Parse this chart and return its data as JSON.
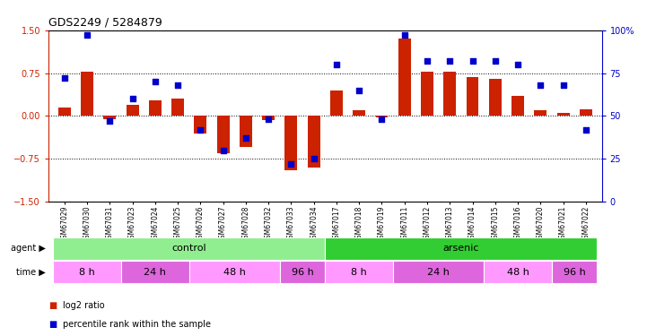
{
  "title": "GDS2249 / 5284879",
  "samples": [
    "GSM67029",
    "GSM67030",
    "GSM67031",
    "GSM67023",
    "GSM67024",
    "GSM67025",
    "GSM67026",
    "GSM67027",
    "GSM67028",
    "GSM67032",
    "GSM67033",
    "GSM67034",
    "GSM67017",
    "GSM67018",
    "GSM67019",
    "GSM67011",
    "GSM67012",
    "GSM67013",
    "GSM67014",
    "GSM67015",
    "GSM67016",
    "GSM67020",
    "GSM67021",
    "GSM67022"
  ],
  "log2ratio": [
    0.15,
    0.78,
    -0.05,
    0.2,
    0.27,
    0.3,
    -0.3,
    -0.65,
    -0.55,
    -0.08,
    -0.95,
    -0.9,
    0.45,
    0.1,
    -0.03,
    1.35,
    0.78,
    0.78,
    0.68,
    0.65,
    0.35,
    0.1,
    0.05,
    0.12
  ],
  "percentile": [
    72,
    97,
    47,
    60,
    70,
    68,
    42,
    30,
    37,
    48,
    22,
    25,
    80,
    65,
    48,
    97,
    82,
    82,
    82,
    82,
    80,
    68,
    68,
    42
  ],
  "agent_groups": [
    {
      "label": "control",
      "start": 0,
      "end": 11,
      "color": "#90ee90"
    },
    {
      "label": "arsenic",
      "start": 12,
      "end": 23,
      "color": "#32cd32"
    }
  ],
  "time_groups": [
    {
      "label": "8 h",
      "start": 0,
      "end": 2,
      "color": "#ff99ff"
    },
    {
      "label": "24 h",
      "start": 3,
      "end": 5,
      "color": "#dd66dd"
    },
    {
      "label": "48 h",
      "start": 6,
      "end": 9,
      "color": "#ff99ff"
    },
    {
      "label": "96 h",
      "start": 10,
      "end": 11,
      "color": "#dd66dd"
    },
    {
      "label": "8 h",
      "start": 12,
      "end": 14,
      "color": "#ff99ff"
    },
    {
      "label": "24 h",
      "start": 15,
      "end": 18,
      "color": "#dd66dd"
    },
    {
      "label": "48 h",
      "start": 19,
      "end": 21,
      "color": "#ff99ff"
    },
    {
      "label": "96 h",
      "start": 22,
      "end": 23,
      "color": "#dd66dd"
    }
  ],
  "bar_color": "#cc2200",
  "dot_color": "#0000cc",
  "ylim_left": [
    -1.5,
    1.5
  ],
  "ylim_right": [
    0,
    100
  ],
  "yticks_left": [
    -1.5,
    -0.75,
    0,
    0.75,
    1.5
  ],
  "yticks_right": [
    0,
    25,
    50,
    75,
    100
  ],
  "hlines": [
    -0.75,
    0,
    0.75
  ],
  "legend_items": [
    {
      "label": "log2 ratio",
      "color": "#cc2200"
    },
    {
      "label": "percentile rank within the sample",
      "color": "#0000cc"
    }
  ]
}
